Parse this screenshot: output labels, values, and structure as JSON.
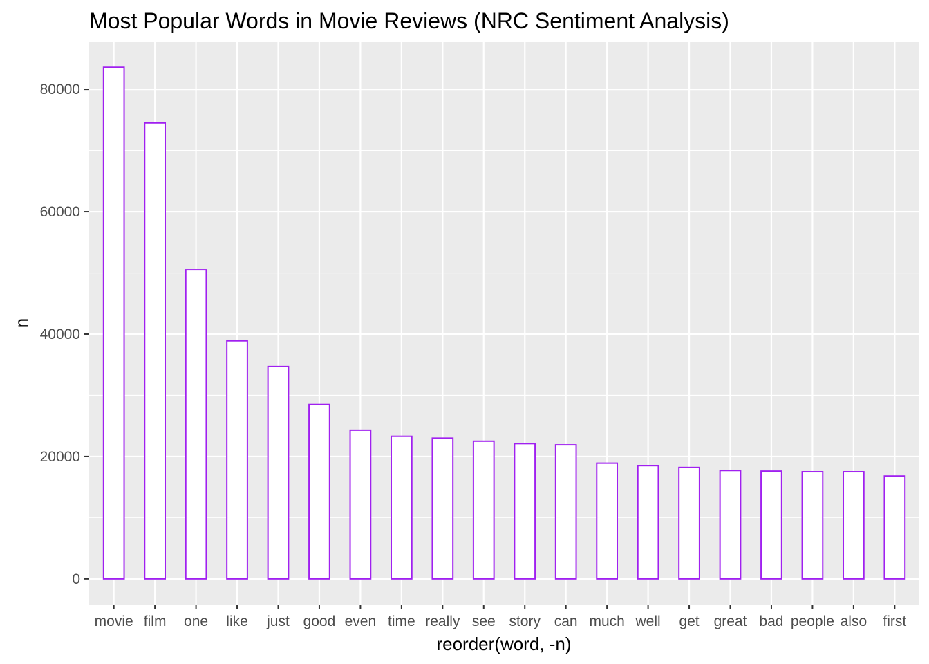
{
  "chart_data": {
    "type": "bar",
    "title": "Most Popular Words in Movie Reviews (NRC Sentiment Analysis)",
    "xlabel": "reorder(word, -n)",
    "ylabel": "n",
    "categories": [
      "movie",
      "film",
      "one",
      "like",
      "just",
      "good",
      "even",
      "time",
      "really",
      "see",
      "story",
      "can",
      "much",
      "well",
      "get",
      "great",
      "bad",
      "people",
      "also",
      "first"
    ],
    "values": [
      83600,
      74500,
      50500,
      38900,
      34700,
      28500,
      24300,
      23300,
      23000,
      22500,
      22100,
      21900,
      18900,
      18500,
      18200,
      17700,
      17600,
      17500,
      17500,
      16800
    ],
    "ylim": [
      -4200,
      87700
    ],
    "yticks": [
      0,
      20000,
      40000,
      60000,
      80000
    ],
    "ytick_labels": [
      "0",
      "20000",
      "40000",
      "60000",
      "80000"
    ],
    "grid": true,
    "legend": "none",
    "colors": {
      "panel_background": "#ebebeb",
      "grid_line": "#ffffff",
      "bar_fill": "#ffffff",
      "bar_outline": "#a020f0"
    }
  }
}
